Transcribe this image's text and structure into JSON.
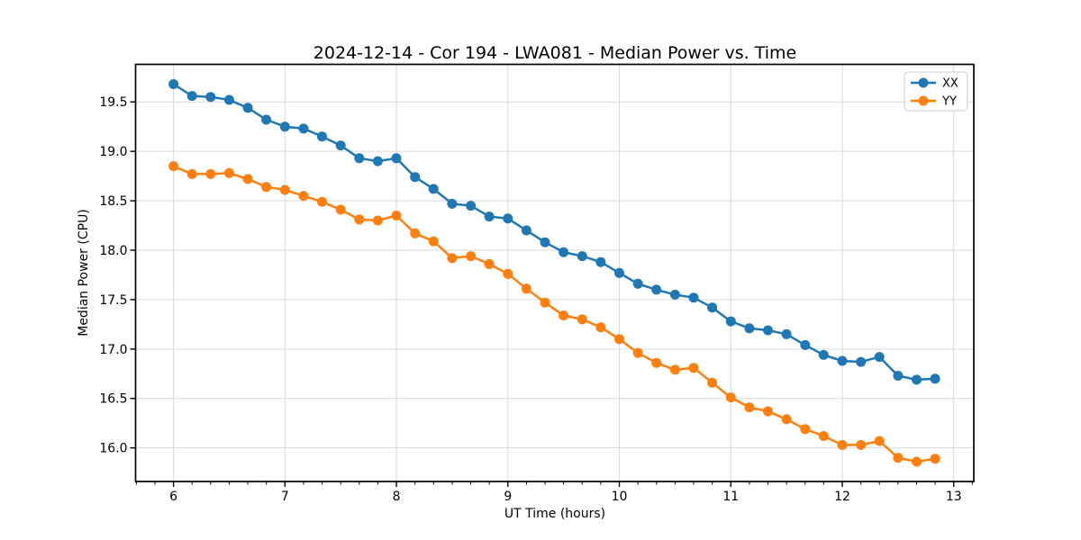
{
  "chart_data": {
    "type": "line",
    "title": "2024-12-14 - Cor 194 - LWA081 - Median Power vs. Time",
    "xlabel": "UT Time (hours)",
    "ylabel": "Median Power (CPU)",
    "xlim": [
      5.66,
      13.18
    ],
    "ylim": [
      15.66,
      19.88
    ],
    "grid": true,
    "legend_position": "upper right",
    "xticks": {
      "values": [
        6,
        7,
        8,
        9,
        10,
        11,
        12,
        13
      ],
      "labels": [
        "6",
        "7",
        "8",
        "9",
        "10",
        "11",
        "12",
        "13"
      ]
    },
    "yticks": {
      "values": [
        16.0,
        16.5,
        17.0,
        17.5,
        18.0,
        18.5,
        19.0,
        19.5
      ],
      "labels": [
        "16.0",
        "16.5",
        "17.0",
        "17.5",
        "18.0",
        "18.5",
        "19.0",
        "19.5"
      ]
    },
    "x_minor_step": 0.166667,
    "x": [
      6.0,
      6.167,
      6.333,
      6.5,
      6.667,
      6.833,
      7.0,
      7.167,
      7.333,
      7.5,
      7.667,
      7.833,
      8.0,
      8.167,
      8.333,
      8.5,
      8.667,
      8.833,
      9.0,
      9.167,
      9.333,
      9.5,
      9.667,
      9.833,
      10.0,
      10.167,
      10.333,
      10.5,
      10.667,
      10.833,
      11.0,
      11.167,
      11.333,
      11.5,
      11.667,
      11.833,
      12.0,
      12.167,
      12.333,
      12.5,
      12.667,
      12.833
    ],
    "series": [
      {
        "name": "XX",
        "color": "#1f77b4",
        "marker": "circle",
        "values": [
          19.68,
          19.56,
          19.55,
          19.52,
          19.44,
          19.32,
          19.25,
          19.23,
          19.15,
          19.06,
          18.93,
          18.9,
          18.93,
          18.74,
          18.62,
          18.47,
          18.45,
          18.34,
          18.32,
          18.2,
          18.08,
          17.98,
          17.94,
          17.88,
          17.77,
          17.66,
          17.6,
          17.55,
          17.52,
          17.42,
          17.28,
          17.21,
          17.19,
          17.15,
          17.04,
          16.94,
          16.88,
          16.87,
          16.92,
          16.73,
          16.69,
          16.7
        ]
      },
      {
        "name": "YY",
        "color": "#ff7f0e",
        "marker": "circle",
        "values": [
          18.85,
          18.77,
          18.77,
          18.78,
          18.72,
          18.64,
          18.61,
          18.55,
          18.49,
          18.41,
          18.31,
          18.3,
          18.35,
          18.17,
          18.09,
          17.92,
          17.94,
          17.86,
          17.76,
          17.61,
          17.47,
          17.34,
          17.3,
          17.22,
          17.1,
          16.96,
          16.86,
          16.79,
          16.81,
          16.66,
          16.51,
          16.41,
          16.37,
          16.29,
          16.19,
          16.12,
          16.03,
          16.03,
          16.07,
          15.9,
          15.86,
          15.89
        ]
      }
    ]
  },
  "style": {
    "grid_color": "#d9d9d9",
    "spine_color": "#000000",
    "background": "#ffffff",
    "marker_radius": 5.5,
    "line_width": 2.5
  }
}
